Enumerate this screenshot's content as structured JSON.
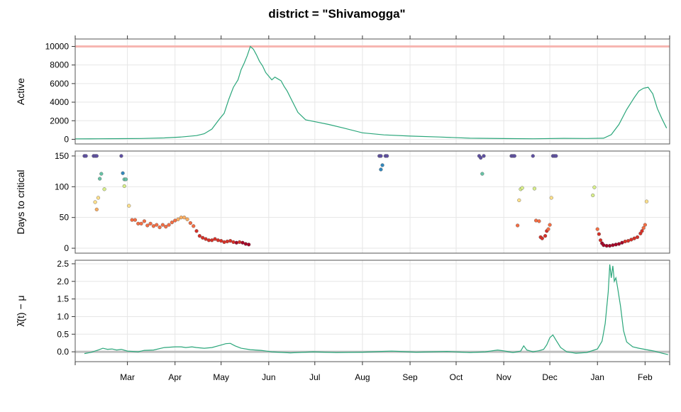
{
  "chart_data": {
    "type": "line",
    "title": "district = \"Shivamogga\"",
    "xlim": [
      "2021-01-26",
      "2022-02-17"
    ],
    "x_ticks": [
      {
        "date": "2021-03-01",
        "label": "Mar"
      },
      {
        "date": "2021-04-01",
        "label": "Apr"
      },
      {
        "date": "2021-05-01",
        "label": "May"
      },
      {
        "date": "2021-06-01",
        "label": "Jun"
      },
      {
        "date": "2021-07-01",
        "label": "Jul"
      },
      {
        "date": "2021-08-01",
        "label": "Aug"
      },
      {
        "date": "2021-09-01",
        "label": "Sep"
      },
      {
        "date": "2021-10-01",
        "label": "Oct"
      },
      {
        "date": "2021-11-01",
        "label": "Nov"
      },
      {
        "date": "2021-12-01",
        "label": "Dec"
      },
      {
        "date": "2022-01-01",
        "label": "Jan"
      },
      {
        "date": "2022-02-01",
        "label": "Feb"
      }
    ],
    "grid": true,
    "panels": [
      {
        "id": "active",
        "ylabel": "Active",
        "ylim": [
          -500,
          10800
        ],
        "yticks": [
          0,
          2000,
          4000,
          6000,
          8000,
          10000
        ],
        "reference_line": {
          "y": 10000,
          "color": "#f7b6b2"
        },
        "series_color": "#2aa67a",
        "points": [
          [
            "2021-01-26",
            50
          ],
          [
            "2021-02-10",
            60
          ],
          [
            "2021-02-25",
            70
          ],
          [
            "2021-03-10",
            90
          ],
          [
            "2021-03-25",
            150
          ],
          [
            "2021-04-05",
            250
          ],
          [
            "2021-04-15",
            400
          ],
          [
            "2021-04-20",
            600
          ],
          [
            "2021-04-25",
            1100
          ],
          [
            "2021-04-30",
            2200
          ],
          [
            "2021-05-03",
            2800
          ],
          [
            "2021-05-06",
            4300
          ],
          [
            "2021-05-09",
            5600
          ],
          [
            "2021-05-12",
            6400
          ],
          [
            "2021-05-14",
            7500
          ],
          [
            "2021-05-16",
            8200
          ],
          [
            "2021-05-18",
            9000
          ],
          [
            "2021-05-20",
            10000
          ],
          [
            "2021-05-22",
            9700
          ],
          [
            "2021-05-24",
            9100
          ],
          [
            "2021-05-26",
            8400
          ],
          [
            "2021-05-28",
            7900
          ],
          [
            "2021-05-30",
            7200
          ],
          [
            "2021-06-01",
            6800
          ],
          [
            "2021-06-03",
            6400
          ],
          [
            "2021-06-05",
            6700
          ],
          [
            "2021-06-07",
            6500
          ],
          [
            "2021-06-09",
            6300
          ],
          [
            "2021-06-11",
            5700
          ],
          [
            "2021-06-13",
            5200
          ],
          [
            "2021-06-16",
            4200
          ],
          [
            "2021-06-20",
            2900
          ],
          [
            "2021-06-25",
            2100
          ],
          [
            "2021-07-01",
            1900
          ],
          [
            "2021-07-10",
            1600
          ],
          [
            "2021-07-20",
            1200
          ],
          [
            "2021-08-01",
            700
          ],
          [
            "2021-08-15",
            480
          ],
          [
            "2021-09-01",
            350
          ],
          [
            "2021-09-20",
            250
          ],
          [
            "2021-10-10",
            120
          ],
          [
            "2021-11-01",
            80
          ],
          [
            "2021-11-20",
            60
          ],
          [
            "2021-12-10",
            100
          ],
          [
            "2021-12-25",
            90
          ],
          [
            "2022-01-05",
            120
          ],
          [
            "2022-01-10",
            500
          ],
          [
            "2022-01-15",
            1600
          ],
          [
            "2022-01-20",
            3200
          ],
          [
            "2022-01-25",
            4500
          ],
          [
            "2022-01-28",
            5200
          ],
          [
            "2022-01-31",
            5500
          ],
          [
            "2022-02-03",
            5600
          ],
          [
            "2022-02-06",
            4900
          ],
          [
            "2022-02-09",
            3300
          ],
          [
            "2022-02-12",
            2200
          ],
          [
            "2022-02-15",
            1200
          ]
        ]
      },
      {
        "id": "days",
        "ylabel": "Days to critical",
        "ylim": [
          -8,
          158
        ],
        "yticks": [
          0,
          50,
          100,
          150
        ],
        "color_scale": [
          "#a50026",
          "#d73027",
          "#f46d43",
          "#fdae61",
          "#fee08b",
          "#d9ef8b",
          "#66c2a5",
          "#3288bd",
          "#5e4fa2"
        ],
        "points": [
          [
            "2021-02-01",
            150
          ],
          [
            "2021-02-02",
            150
          ],
          [
            "2021-02-07",
            150
          ],
          [
            "2021-02-08",
            150
          ],
          [
            "2021-02-09",
            150
          ],
          [
            "2021-02-25",
            150
          ],
          [
            "2021-02-08",
            75
          ],
          [
            "2021-02-09",
            63
          ],
          [
            "2021-02-10",
            82
          ],
          [
            "2021-02-11",
            113
          ],
          [
            "2021-02-12",
            121
          ],
          [
            "2021-02-14",
            96
          ],
          [
            "2021-02-26",
            122
          ],
          [
            "2021-02-27",
            101
          ],
          [
            "2021-02-27",
            112
          ],
          [
            "2021-02-28",
            112
          ],
          [
            "2021-03-02",
            69
          ],
          [
            "2021-03-04",
            46
          ],
          [
            "2021-03-06",
            46
          ],
          [
            "2021-03-08",
            40
          ],
          [
            "2021-03-10",
            40
          ],
          [
            "2021-03-12",
            44
          ],
          [
            "2021-03-14",
            37
          ],
          [
            "2021-03-16",
            40
          ],
          [
            "2021-03-18",
            36
          ],
          [
            "2021-03-20",
            38
          ],
          [
            "2021-03-22",
            34
          ],
          [
            "2021-03-24",
            38
          ],
          [
            "2021-03-26",
            35
          ],
          [
            "2021-03-28",
            38
          ],
          [
            "2021-03-30",
            42
          ],
          [
            "2021-04-01",
            45
          ],
          [
            "2021-04-03",
            47
          ],
          [
            "2021-04-05",
            50
          ],
          [
            "2021-04-07",
            50
          ],
          [
            "2021-04-09",
            47
          ],
          [
            "2021-04-11",
            41
          ],
          [
            "2021-04-13",
            36
          ],
          [
            "2021-04-15",
            28
          ],
          [
            "2021-04-17",
            20
          ],
          [
            "2021-04-19",
            17
          ],
          [
            "2021-04-21",
            15
          ],
          [
            "2021-04-23",
            13
          ],
          [
            "2021-04-25",
            13
          ],
          [
            "2021-04-27",
            15
          ],
          [
            "2021-04-29",
            13
          ],
          [
            "2021-05-01",
            12
          ],
          [
            "2021-05-03",
            10
          ],
          [
            "2021-05-05",
            11
          ],
          [
            "2021-05-07",
            12
          ],
          [
            "2021-05-09",
            10
          ],
          [
            "2021-05-11",
            9
          ],
          [
            "2021-05-13",
            10
          ],
          [
            "2021-05-15",
            9
          ],
          [
            "2021-05-17",
            7
          ],
          [
            "2021-05-19",
            6
          ],
          [
            "2021-08-12",
            150
          ],
          [
            "2021-08-13",
            150
          ],
          [
            "2021-08-16",
            150
          ],
          [
            "2021-08-17",
            150
          ],
          [
            "2021-08-14",
            135
          ],
          [
            "2021-08-13",
            128
          ],
          [
            "2021-10-16",
            150
          ],
          [
            "2021-10-17",
            147
          ],
          [
            "2021-10-19",
            150
          ],
          [
            "2021-10-18",
            121
          ],
          [
            "2021-11-06",
            150
          ],
          [
            "2021-11-07",
            150
          ],
          [
            "2021-11-08",
            150
          ],
          [
            "2021-11-20",
            150
          ],
          [
            "2021-12-03",
            150
          ],
          [
            "2021-12-04",
            150
          ],
          [
            "2021-12-05",
            150
          ],
          [
            "2021-11-10",
            37
          ],
          [
            "2021-11-11",
            78
          ],
          [
            "2021-11-12",
            96
          ],
          [
            "2021-11-13",
            98
          ],
          [
            "2021-11-21",
            97
          ],
          [
            "2021-11-22",
            45
          ],
          [
            "2021-11-24",
            44
          ],
          [
            "2021-11-25",
            18
          ],
          [
            "2021-11-26",
            16
          ],
          [
            "2021-11-28",
            20
          ],
          [
            "2021-11-29",
            28
          ],
          [
            "2021-11-30",
            31
          ],
          [
            "2021-12-01",
            38
          ],
          [
            "2021-12-02",
            82
          ],
          [
            "2021-12-29",
            86
          ],
          [
            "2021-12-30",
            99
          ],
          [
            "2022-01-01",
            31
          ],
          [
            "2022-01-02",
            23
          ],
          [
            "2022-01-03",
            13
          ],
          [
            "2022-01-04",
            8
          ],
          [
            "2022-01-05",
            5
          ],
          [
            "2022-01-07",
            4
          ],
          [
            "2022-01-09",
            4
          ],
          [
            "2022-01-11",
            5
          ],
          [
            "2022-01-13",
            6
          ],
          [
            "2022-01-15",
            7
          ],
          [
            "2022-01-17",
            9
          ],
          [
            "2022-01-19",
            11
          ],
          [
            "2022-01-21",
            12
          ],
          [
            "2022-01-23",
            14
          ],
          [
            "2022-01-25",
            16
          ],
          [
            "2022-01-27",
            18
          ],
          [
            "2022-01-29",
            24
          ],
          [
            "2022-01-30",
            28
          ],
          [
            "2022-01-31",
            33
          ],
          [
            "2022-02-01",
            38
          ],
          [
            "2022-02-02",
            76
          ]
        ]
      },
      {
        "id": "lambda",
        "ylabel": "λ̂(t) − μ",
        "ylim": [
          -0.28,
          2.6
        ],
        "yticks": [
          0.0,
          0.5,
          1.0,
          1.5,
          2.0,
          2.5
        ],
        "ytick_labels": [
          "0.0",
          "0.5",
          "1.0",
          "1.5",
          "2.0",
          "2.5"
        ],
        "reference_line": {
          "y": 0,
          "color": "#bdbdbd"
        },
        "series_color": "#2aa67a",
        "points": [
          [
            "2021-02-01",
            -0.05
          ],
          [
            "2021-02-05",
            -0.02
          ],
          [
            "2021-02-10",
            0.05
          ],
          [
            "2021-02-13",
            0.1
          ],
          [
            "2021-02-16",
            0.07
          ],
          [
            "2021-02-19",
            0.08
          ],
          [
            "2021-02-22",
            0.05
          ],
          [
            "2021-02-25",
            0.07
          ],
          [
            "2021-03-01",
            0.02
          ],
          [
            "2021-03-08",
            0.0
          ],
          [
            "2021-03-12",
            0.04
          ],
          [
            "2021-03-18",
            0.05
          ],
          [
            "2021-03-25",
            0.12
          ],
          [
            "2021-04-01",
            0.14
          ],
          [
            "2021-04-05",
            0.14
          ],
          [
            "2021-04-08",
            0.12
          ],
          [
            "2021-04-12",
            0.14
          ],
          [
            "2021-04-15",
            0.12
          ],
          [
            "2021-04-20",
            0.1
          ],
          [
            "2021-04-25",
            0.12
          ],
          [
            "2021-04-30",
            0.18
          ],
          [
            "2021-05-04",
            0.23
          ],
          [
            "2021-05-07",
            0.24
          ],
          [
            "2021-05-10",
            0.17
          ],
          [
            "2021-05-14",
            0.1
          ],
          [
            "2021-05-20",
            0.06
          ],
          [
            "2021-05-27",
            0.04
          ],
          [
            "2021-06-03",
            0.0
          ],
          [
            "2021-06-15",
            -0.03
          ],
          [
            "2021-06-30",
            0.0
          ],
          [
            "2021-07-15",
            -0.02
          ],
          [
            "2021-08-01",
            -0.01
          ],
          [
            "2021-08-20",
            0.02
          ],
          [
            "2021-09-05",
            -0.01
          ],
          [
            "2021-09-25",
            0.01
          ],
          [
            "2021-10-10",
            -0.02
          ],
          [
            "2021-10-20",
            0.0
          ],
          [
            "2021-10-28",
            0.05
          ],
          [
            "2021-11-02",
            0.02
          ],
          [
            "2021-11-07",
            -0.02
          ],
          [
            "2021-11-12",
            0.02
          ],
          [
            "2021-11-14",
            0.17
          ],
          [
            "2021-11-16",
            0.05
          ],
          [
            "2021-11-20",
            0.0
          ],
          [
            "2021-11-24",
            0.03
          ],
          [
            "2021-11-27",
            0.07
          ],
          [
            "2021-11-29",
            0.2
          ],
          [
            "2021-12-01",
            0.4
          ],
          [
            "2021-12-03",
            0.48
          ],
          [
            "2021-12-05",
            0.33
          ],
          [
            "2021-12-08",
            0.12
          ],
          [
            "2021-12-12",
            0.0
          ],
          [
            "2021-12-18",
            -0.04
          ],
          [
            "2021-12-25",
            -0.02
          ],
          [
            "2022-01-01",
            0.08
          ],
          [
            "2022-01-04",
            0.3
          ],
          [
            "2022-01-06",
            0.8
          ],
          [
            "2022-01-08",
            1.7
          ],
          [
            "2022-01-09",
            2.48
          ],
          [
            "2022-01-10",
            2.1
          ],
          [
            "2022-01-11",
            2.44
          ],
          [
            "2022-01-12",
            2.0
          ],
          [
            "2022-01-13",
            2.1
          ],
          [
            "2022-01-14",
            1.85
          ],
          [
            "2022-01-16",
            1.3
          ],
          [
            "2022-01-18",
            0.6
          ],
          [
            "2022-01-20",
            0.28
          ],
          [
            "2022-01-24",
            0.14
          ],
          [
            "2022-01-28",
            0.1
          ],
          [
            "2022-02-02",
            0.06
          ],
          [
            "2022-02-07",
            0.02
          ],
          [
            "2022-02-12",
            -0.04
          ],
          [
            "2022-02-16",
            -0.08
          ]
        ]
      }
    ]
  }
}
